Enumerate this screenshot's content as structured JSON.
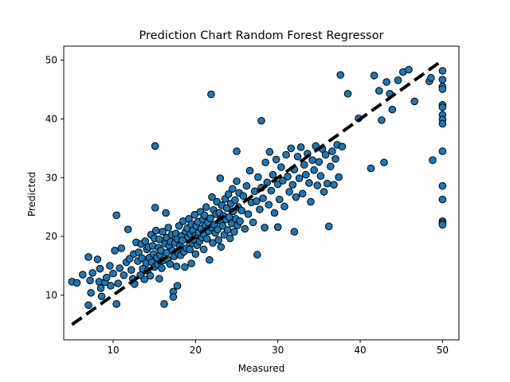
{
  "chart_data": {
    "type": "scatter",
    "title": "Prediction Chart Random Forest Regressor",
    "xlabel": "Measured",
    "ylabel": "Predicted",
    "xlim": [
      4.0,
      52.0
    ],
    "ylim": [
      2.4,
      52.4
    ],
    "xticks": [
      10,
      20,
      30,
      40,
      50
    ],
    "yticks": [
      10,
      20,
      30,
      40,
      50
    ],
    "grid": false,
    "legend": "none",
    "marker_color": "#1f77b4",
    "marker_edge_color": "#000000",
    "reference_line": {
      "x": [
        5,
        50
      ],
      "y": [
        5,
        50
      ],
      "style": "dashed",
      "color": "#000000"
    },
    "series": [
      {
        "points": [
          [
            5.0,
            12.3
          ],
          [
            5.6,
            12.1
          ],
          [
            6.3,
            13.5
          ],
          [
            7.0,
            16.5
          ],
          [
            7.2,
            12.5
          ],
          [
            7.5,
            13.8
          ],
          [
            7.0,
            8.3
          ],
          [
            7.3,
            10.4
          ],
          [
            8.1,
            16.1
          ],
          [
            8.3,
            12.3
          ],
          [
            8.4,
            14.5
          ],
          [
            8.5,
            11.2
          ],
          [
            8.6,
            9.8
          ],
          [
            9.0,
            12.2
          ],
          [
            9.2,
            13.0
          ],
          [
            9.6,
            15.0
          ],
          [
            9.7,
            11.6
          ],
          [
            10.0,
            13.7
          ],
          [
            10.2,
            17.6
          ],
          [
            10.4,
            23.6
          ],
          [
            10.4,
            8.5
          ],
          [
            10.6,
            12.0
          ],
          [
            10.8,
            14.6
          ],
          [
            11.0,
            18.0
          ],
          [
            11.3,
            13.4
          ],
          [
            11.6,
            15.6
          ],
          [
            11.8,
            21.2
          ],
          [
            12.0,
            16.2
          ],
          [
            12.2,
            14.3
          ],
          [
            12.4,
            12.8
          ],
          [
            12.5,
            17.0
          ],
          [
            12.6,
            11.9
          ],
          [
            12.8,
            19.0
          ],
          [
            13.0,
            15.8
          ],
          [
            13.1,
            17.3
          ],
          [
            13.3,
            13.4
          ],
          [
            13.4,
            18.7
          ],
          [
            13.5,
            16.3
          ],
          [
            13.6,
            14.5
          ],
          [
            13.8,
            12.7
          ],
          [
            13.9,
            19.2
          ],
          [
            14.0,
            15.5
          ],
          [
            14.1,
            17.8
          ],
          [
            14.2,
            14.2
          ],
          [
            14.3,
            18.2
          ],
          [
            14.4,
            16.4
          ],
          [
            14.5,
            13.3
          ],
          [
            14.6,
            20.3
          ],
          [
            14.7,
            15.6
          ],
          [
            14.8,
            18.4
          ],
          [
            14.9,
            17.0
          ],
          [
            15.0,
            19.7
          ],
          [
            15.0,
            14.8
          ],
          [
            15.1,
            24.9
          ],
          [
            15.1,
            35.4
          ],
          [
            15.2,
            21.0
          ],
          [
            15.3,
            16.4
          ],
          [
            15.4,
            15.2
          ],
          [
            15.5,
            18.1
          ],
          [
            15.6,
            12.8
          ],
          [
            15.6,
            19.5
          ],
          [
            15.7,
            16.9
          ],
          [
            15.8,
            17.6
          ],
          [
            15.9,
            14.6
          ],
          [
            16.0,
            20.8
          ],
          [
            16.1,
            15.9
          ],
          [
            16.2,
            8.5
          ],
          [
            16.3,
            18.8
          ],
          [
            16.4,
            24.0
          ],
          [
            16.5,
            17.2
          ],
          [
            16.5,
            19.8
          ],
          [
            16.6,
            16.1
          ],
          [
            16.7,
            21.5
          ],
          [
            16.8,
            18.4
          ],
          [
            16.9,
            15.3
          ],
          [
            17.0,
            19.1
          ],
          [
            17.1,
            20.3
          ],
          [
            17.2,
            17.6
          ],
          [
            17.3,
            10.6
          ],
          [
            17.3,
            9.7
          ],
          [
            17.4,
            16.6
          ],
          [
            17.5,
            18.9
          ],
          [
            17.6,
            20.5
          ],
          [
            17.7,
            14.9
          ],
          [
            17.8,
            19.6
          ],
          [
            17.8,
            11.6
          ],
          [
            17.9,
            17.1
          ],
          [
            18.0,
            21.8
          ],
          [
            18.1,
            18.4
          ],
          [
            18.2,
            16.8
          ],
          [
            18.3,
            20.1
          ],
          [
            18.4,
            19.3
          ],
          [
            18.5,
            22.6
          ],
          [
            18.6,
            17.4
          ],
          [
            18.7,
            14.8
          ],
          [
            18.8,
            20.8
          ],
          [
            18.9,
            18.0
          ],
          [
            19.0,
            21.4
          ],
          [
            19.1,
            19.9
          ],
          [
            19.2,
            23.0
          ],
          [
            19.3,
            17.8
          ],
          [
            19.4,
            20.4
          ],
          [
            19.5,
            22.1
          ],
          [
            19.5,
            15.4
          ],
          [
            19.6,
            18.9
          ],
          [
            19.7,
            21.0
          ],
          [
            19.8,
            19.5
          ],
          [
            19.9,
            23.7
          ],
          [
            20.0,
            20.2
          ],
          [
            20.0,
            17.0
          ],
          [
            20.1,
            21.8
          ],
          [
            20.2,
            18.5
          ],
          [
            20.3,
            22.5
          ],
          [
            20.4,
            20.7
          ],
          [
            20.5,
            19.2
          ],
          [
            20.6,
            24.2
          ],
          [
            20.7,
            21.3
          ],
          [
            20.8,
            19.8
          ],
          [
            20.9,
            22.9
          ],
          [
            21.0,
            20.4
          ],
          [
            21.0,
            17.8
          ],
          [
            21.1,
            23.6
          ],
          [
            21.2,
            21.9
          ],
          [
            21.3,
            25.0
          ],
          [
            21.4,
            19.6
          ],
          [
            21.5,
            22.4
          ],
          [
            21.6,
            20.9
          ],
          [
            21.7,
            16.0
          ],
          [
            21.8,
            23.1
          ],
          [
            21.9,
            44.2
          ],
          [
            22.0,
            21.5
          ],
          [
            22.0,
            26.7
          ],
          [
            22.1,
            18.9
          ],
          [
            22.2,
            24.5
          ],
          [
            22.3,
            22.0
          ],
          [
            22.4,
            20.6
          ],
          [
            22.5,
            23.8
          ],
          [
            22.6,
            25.9
          ],
          [
            22.7,
            21.2
          ],
          [
            22.8,
            19.4
          ],
          [
            22.9,
            24.0
          ],
          [
            23.0,
            22.7
          ],
          [
            23.0,
            29.9
          ],
          [
            23.1,
            18.2
          ],
          [
            23.2,
            25.3
          ],
          [
            23.3,
            21.8
          ],
          [
            23.4,
            23.5
          ],
          [
            23.5,
            20.3
          ],
          [
            23.6,
            26.4
          ],
          [
            23.7,
            22.9
          ],
          [
            23.8,
            24.8
          ],
          [
            23.9,
            21.1
          ],
          [
            24.0,
            27.2
          ],
          [
            24.1,
            23.3
          ],
          [
            24.2,
            19.7
          ],
          [
            24.3,
            25.6
          ],
          [
            24.4,
            22.2
          ],
          [
            24.5,
            28.1
          ],
          [
            24.6,
            24.3
          ],
          [
            24.7,
            20.8
          ],
          [
            24.8,
            26.2
          ],
          [
            24.9,
            23.0
          ],
          [
            25.0,
            34.5
          ],
          [
            25.0,
            29.4
          ],
          [
            25.1,
            21.9
          ],
          [
            25.2,
            25.0
          ],
          [
            25.3,
            27.4
          ],
          [
            25.4,
            22.6
          ],
          [
            25.6,
            24.4
          ],
          [
            25.8,
            26.9
          ],
          [
            26.0,
            21.3
          ],
          [
            26.2,
            28.6
          ],
          [
            26.4,
            23.8
          ],
          [
            26.6,
            31.2
          ],
          [
            26.8,
            25.8
          ],
          [
            27.0,
            22.4
          ],
          [
            27.2,
            27.7
          ],
          [
            27.4,
            26.0
          ],
          [
            27.5,
            16.9
          ],
          [
            27.6,
            30.1
          ],
          [
            27.8,
            24.6
          ],
          [
            28.0,
            28.3
          ],
          [
            28.0,
            39.7
          ],
          [
            28.2,
            26.5
          ],
          [
            28.4,
            21.5
          ],
          [
            28.5,
            32.6
          ],
          [
            28.7,
            29.2
          ],
          [
            28.9,
            25.4
          ],
          [
            29.0,
            34.4
          ],
          [
            29.2,
            27.8
          ],
          [
            29.4,
            30.5
          ],
          [
            29.6,
            24.0
          ],
          [
            29.8,
            33.1
          ],
          [
            30.0,
            28.9
          ],
          [
            30.0,
            21.6
          ],
          [
            30.2,
            26.3
          ],
          [
            30.4,
            31.8
          ],
          [
            30.6,
            29.5
          ],
          [
            30.8,
            25.1
          ],
          [
            31.0,
            33.9
          ],
          [
            31.2,
            30.2
          ],
          [
            31.4,
            27.6
          ],
          [
            31.6,
            35.0
          ],
          [
            31.8,
            28.8
          ],
          [
            32.0,
            20.8
          ],
          [
            32.0,
            31.4
          ],
          [
            32.2,
            26.7
          ],
          [
            32.4,
            33.6
          ],
          [
            32.6,
            29.9
          ],
          [
            32.8,
            35.2
          ],
          [
            33.0,
            27.3
          ],
          [
            33.2,
            32.2
          ],
          [
            33.4,
            30.5
          ],
          [
            33.6,
            34.1
          ],
          [
            33.8,
            29.1
          ],
          [
            34.0,
            25.9
          ],
          [
            34.2,
            33.0
          ],
          [
            34.4,
            31.3
          ],
          [
            34.6,
            35.4
          ],
          [
            34.8,
            28.7
          ],
          [
            35.0,
            32.7
          ],
          [
            35.2,
            30.3
          ],
          [
            35.4,
            34.9
          ],
          [
            35.6,
            27.6
          ],
          [
            35.8,
            33.9
          ],
          [
            36.0,
            29.0
          ],
          [
            36.2,
            21.7
          ],
          [
            36.4,
            31.9
          ],
          [
            36.6,
            34.5
          ],
          [
            36.8,
            28.8
          ],
          [
            37.0,
            33.2
          ],
          [
            37.2,
            35.6
          ],
          [
            37.4,
            30.1
          ],
          [
            37.6,
            47.5
          ],
          [
            37.8,
            35.3
          ],
          [
            38.5,
            44.3
          ],
          [
            39.8,
            40.1
          ],
          [
            41.3,
            31.6
          ],
          [
            41.7,
            47.4
          ],
          [
            42.3,
            44.8
          ],
          [
            42.6,
            39.8
          ],
          [
            42.9,
            32.6
          ],
          [
            43.2,
            46.3
          ],
          [
            43.6,
            44.3
          ],
          [
            43.9,
            41.6
          ],
          [
            44.6,
            46.6
          ],
          [
            45.2,
            48.0
          ],
          [
            45.9,
            48.4
          ],
          [
            46.6,
            43.0
          ],
          [
            48.4,
            46.4
          ],
          [
            48.6,
            47.0
          ],
          [
            48.8,
            33.0
          ],
          [
            50.0,
            48.2
          ],
          [
            50.0,
            46.7
          ],
          [
            50.0,
            45.5
          ],
          [
            50.0,
            45.1
          ],
          [
            50.0,
            42.4
          ],
          [
            50.0,
            42.0
          ],
          [
            50.0,
            40.7
          ],
          [
            50.0,
            39.9
          ],
          [
            50.0,
            39.2
          ],
          [
            50.0,
            34.5
          ],
          [
            50.0,
            28.6
          ],
          [
            50.0,
            26.3
          ],
          [
            50.0,
            22.6
          ],
          [
            50.0,
            22.3
          ],
          [
            50.0,
            22.0
          ]
        ]
      }
    ]
  }
}
